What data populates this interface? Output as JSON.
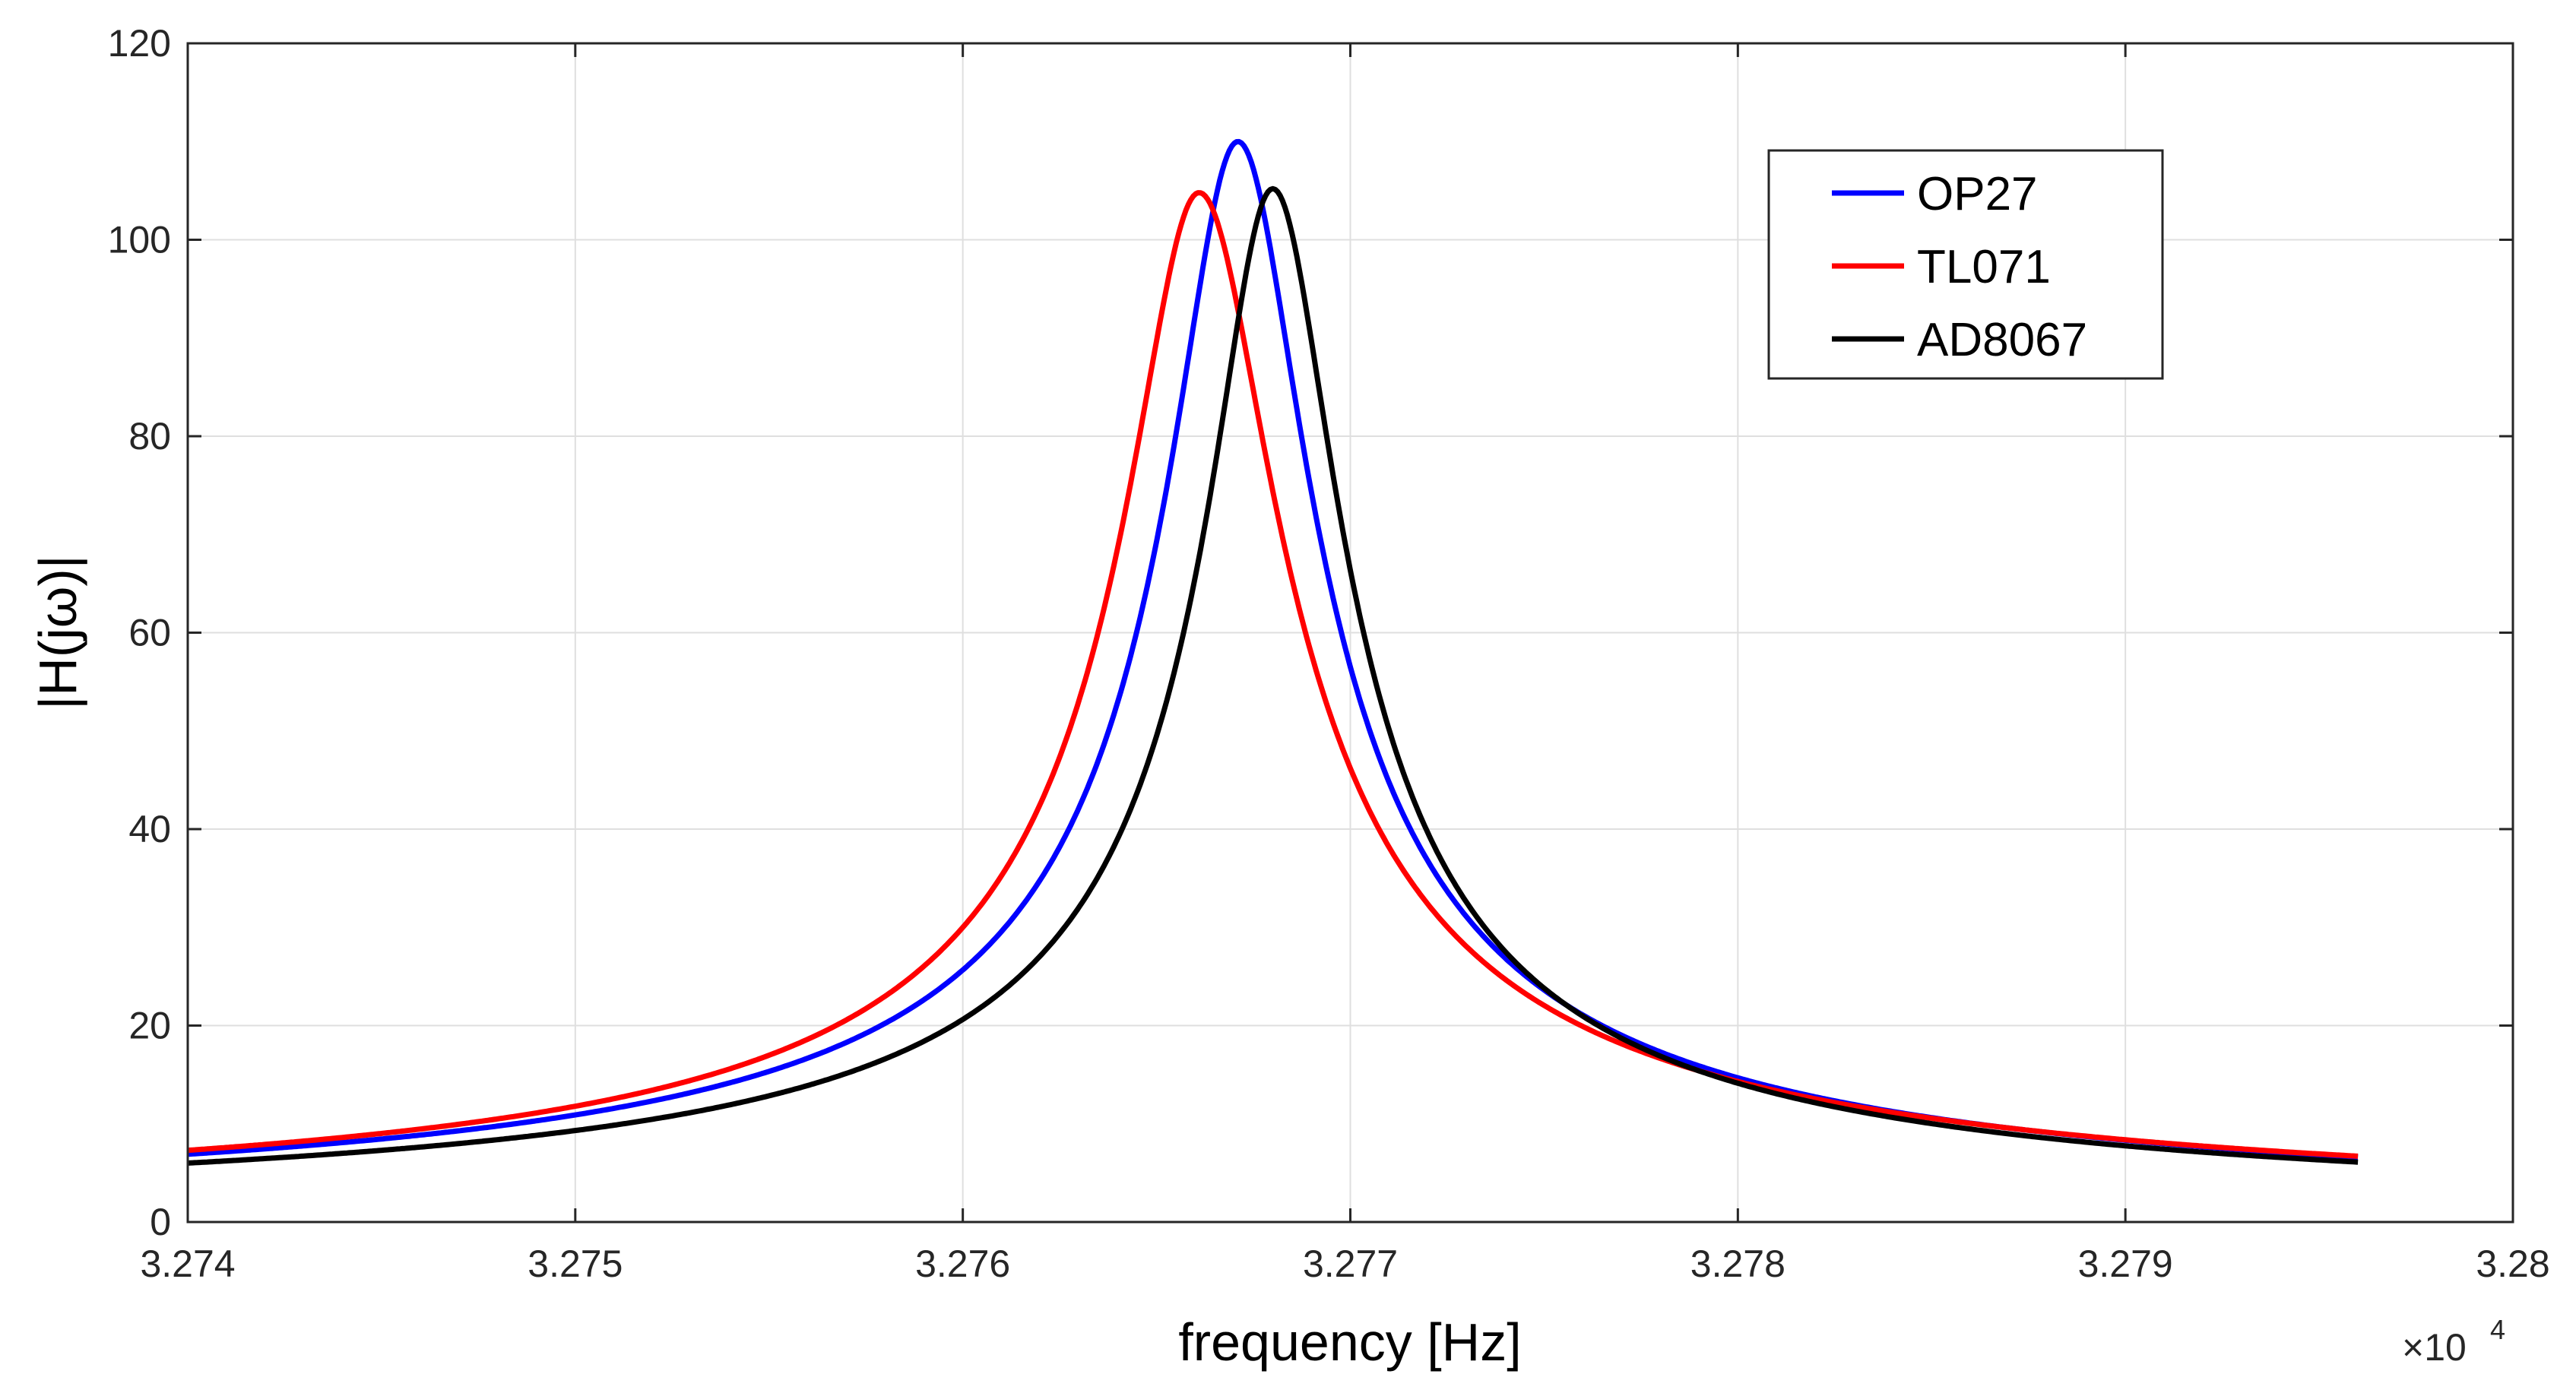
{
  "chart_data": {
    "type": "line",
    "xlabel": "frequency [Hz]",
    "ylabel": "|H(jω)|",
    "x_multiplier_label": "×10",
    "x_multiplier_exponent": "4",
    "xlim": [
      3.274,
      3.28
    ],
    "ylim": [
      0,
      120
    ],
    "x_ticks": [
      "3.274",
      "3.275",
      "3.276",
      "3.277",
      "3.278",
      "3.279",
      "3.28"
    ],
    "y_ticks": [
      "0",
      "20",
      "40",
      "60",
      "80",
      "100",
      "120"
    ],
    "grid": true,
    "legend_position": "top-right",
    "x_range_plotted": [
      3.274,
      3.2796
    ],
    "series": [
      {
        "name": "OP27",
        "color": "#0000ff",
        "peak_x": 3.27671,
        "peak_y": 110.0,
        "points": [
          [
            3.274,
            6.9
          ],
          [
            3.275,
            10.8
          ],
          [
            3.2755,
            15.5
          ],
          [
            3.276,
            25.5
          ],
          [
            3.2763,
            41.0
          ],
          [
            3.2765,
            66.0
          ],
          [
            3.2766,
            88.0
          ],
          [
            3.27671,
            110.0
          ],
          [
            3.2768,
            93.0
          ],
          [
            3.2769,
            66.0
          ],
          [
            3.277,
            45.5
          ],
          [
            3.2773,
            26.0
          ],
          [
            3.2776,
            19.0
          ],
          [
            3.278,
            14.5
          ],
          [
            3.2785,
            10.5
          ],
          [
            3.279,
            8.3
          ],
          [
            3.2796,
            6.6
          ]
        ]
      },
      {
        "name": "TL071",
        "color": "#ff0000",
        "peak_x": 3.27661,
        "peak_y": 104.8,
        "points": [
          [
            3.274,
            7.3
          ],
          [
            3.275,
            12.0
          ],
          [
            3.2755,
            18.0
          ],
          [
            3.276,
            31.0
          ],
          [
            3.2763,
            52.5
          ],
          [
            3.2765,
            86.0
          ],
          [
            3.27661,
            104.8
          ],
          [
            3.2768,
            78.0
          ],
          [
            3.277,
            47.0
          ],
          [
            3.2772,
            33.0
          ],
          [
            3.2775,
            22.0
          ],
          [
            3.278,
            14.0
          ],
          [
            3.2785,
            10.3
          ],
          [
            3.279,
            8.2
          ],
          [
            3.2796,
            6.7
          ]
        ]
      },
      {
        "name": "AD8067",
        "color": "#000000",
        "peak_x": 3.2768,
        "peak_y": 105.2,
        "points": [
          [
            3.274,
            6.0
          ],
          [
            3.275,
            9.8
          ],
          [
            3.2755,
            14.0
          ],
          [
            3.276,
            21.5
          ],
          [
            3.2763,
            31.5
          ],
          [
            3.2765,
            45.0
          ],
          [
            3.2766,
            60.0
          ],
          [
            3.2767,
            82.0
          ],
          [
            3.2768,
            105.2
          ],
          [
            3.2769,
            90.0
          ],
          [
            3.277,
            64.0
          ],
          [
            3.2772,
            40.0
          ],
          [
            3.2775,
            24.0
          ],
          [
            3.278,
            14.8
          ],
          [
            3.2785,
            10.3
          ],
          [
            3.279,
            8.0
          ],
          [
            3.2796,
            6.1
          ]
        ]
      }
    ]
  }
}
